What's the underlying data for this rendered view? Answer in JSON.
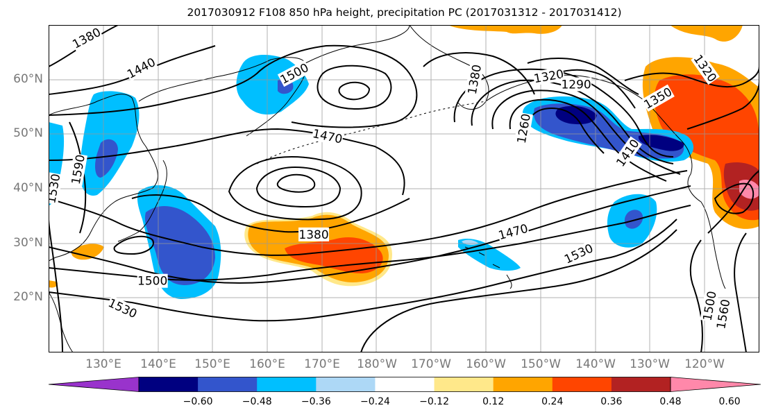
{
  "title": "2017030912 F108 850 hPa height, precipitation PC (2017031312 - 2017031412)",
  "colors": {
    "land_outline": "#000000",
    "grid": "#999999",
    "contour": "#000000",
    "axis_label": "#777777"
  },
  "map": {
    "projection": "PlateCarree",
    "lon_range": [
      120,
      250
    ],
    "lat_range": [
      10,
      70
    ],
    "gridlines": true,
    "lat_labels": [
      {
        "lat": 60,
        "text": "60°N"
      },
      {
        "lat": 50,
        "text": "50°N"
      },
      {
        "lat": 40,
        "text": "40°N"
      },
      {
        "lat": 30,
        "text": "30°N"
      },
      {
        "lat": 20,
        "text": "20°N"
      }
    ],
    "lon_labels": [
      {
        "lon": 130,
        "text": "130°E"
      },
      {
        "lon": 140,
        "text": "140°E"
      },
      {
        "lon": 150,
        "text": "150°E"
      },
      {
        "lon": 160,
        "text": "160°E"
      },
      {
        "lon": 170,
        "text": "170°E"
      },
      {
        "lon": 180,
        "text": "180°W"
      },
      {
        "lon": 190,
        "text": "170°W"
      },
      {
        "lon": 200,
        "text": "160°W"
      },
      {
        "lon": 210,
        "text": "150°W"
      },
      {
        "lon": 220,
        "text": "140°W"
      },
      {
        "lon": 230,
        "text": "130°W"
      },
      {
        "lon": 240,
        "text": "120°W"
      }
    ],
    "contour_labels": [
      {
        "text": "1380",
        "lon": 127,
        "lat": 67.5,
        "rot": -28
      },
      {
        "text": "1440",
        "lon": 137,
        "lat": 62,
        "rot": -28
      },
      {
        "text": "1500",
        "lon": 165,
        "lat": 61,
        "rot": -28
      },
      {
        "text": "1470",
        "lon": 171,
        "lat": 49.5,
        "rot": 12
      },
      {
        "text": "1380",
        "lon": 168.5,
        "lat": 31.5,
        "rot": 0
      },
      {
        "text": "1500",
        "lon": 139,
        "lat": 23,
        "rot": 0
      },
      {
        "text": "1530",
        "lon": 133.5,
        "lat": 18,
        "rot": 25
      },
      {
        "text": "1470",
        "lon": 205,
        "lat": 32,
        "rot": -15
      },
      {
        "text": "1530",
        "lon": 217,
        "lat": 28,
        "rot": -25
      },
      {
        "text": "1320",
        "lon": 211.5,
        "lat": 60.5,
        "rot": -10
      },
      {
        "text": "1290",
        "lon": 216.5,
        "lat": 59,
        "rot": 0
      },
      {
        "text": "1260",
        "lon": 207,
        "lat": 51,
        "rot": -80
      },
      {
        "text": "1410",
        "lon": 226,
        "lat": 46.5,
        "rot": -55
      },
      {
        "text": "1350",
        "lon": 231.5,
        "lat": 56.5,
        "rot": -30
      },
      {
        "text": "1320",
        "lon": 240,
        "lat": 62,
        "rot": 55
      },
      {
        "text": "1380",
        "lon": 198,
        "lat": 60,
        "rot": -80
      },
      {
        "text": "1500",
        "lon": 241,
        "lat": 18.5,
        "rot": -80
      },
      {
        "text": "1560",
        "lon": 243.5,
        "lat": 17,
        "rot": -80
      },
      {
        "text": "1590",
        "lon": 125.5,
        "lat": 43.5,
        "rot": -80
      },
      {
        "text": "1530",
        "lon": 121,
        "lat": 40,
        "rot": -80
      }
    ]
  },
  "colorbar": {
    "levels": [
      -0.72,
      -0.6,
      -0.48,
      -0.36,
      -0.24,
      -0.12,
      0.12,
      0.24,
      0.36,
      0.48,
      0.6,
      0.72
    ],
    "colors": [
      "#9933cc",
      "#000080",
      "#3355cc",
      "#00bfff",
      "#add8f6",
      "#ffffff",
      "#ffe88a",
      "#ffa500",
      "#ff4500",
      "#b22222",
      "#ff88aa"
    ],
    "tick_labels": [
      "-0.60",
      "-0.48",
      "-0.36",
      "-0.24",
      "-0.12",
      "0.12",
      "0.24",
      "0.36",
      "0.48",
      "0.60"
    ]
  }
}
